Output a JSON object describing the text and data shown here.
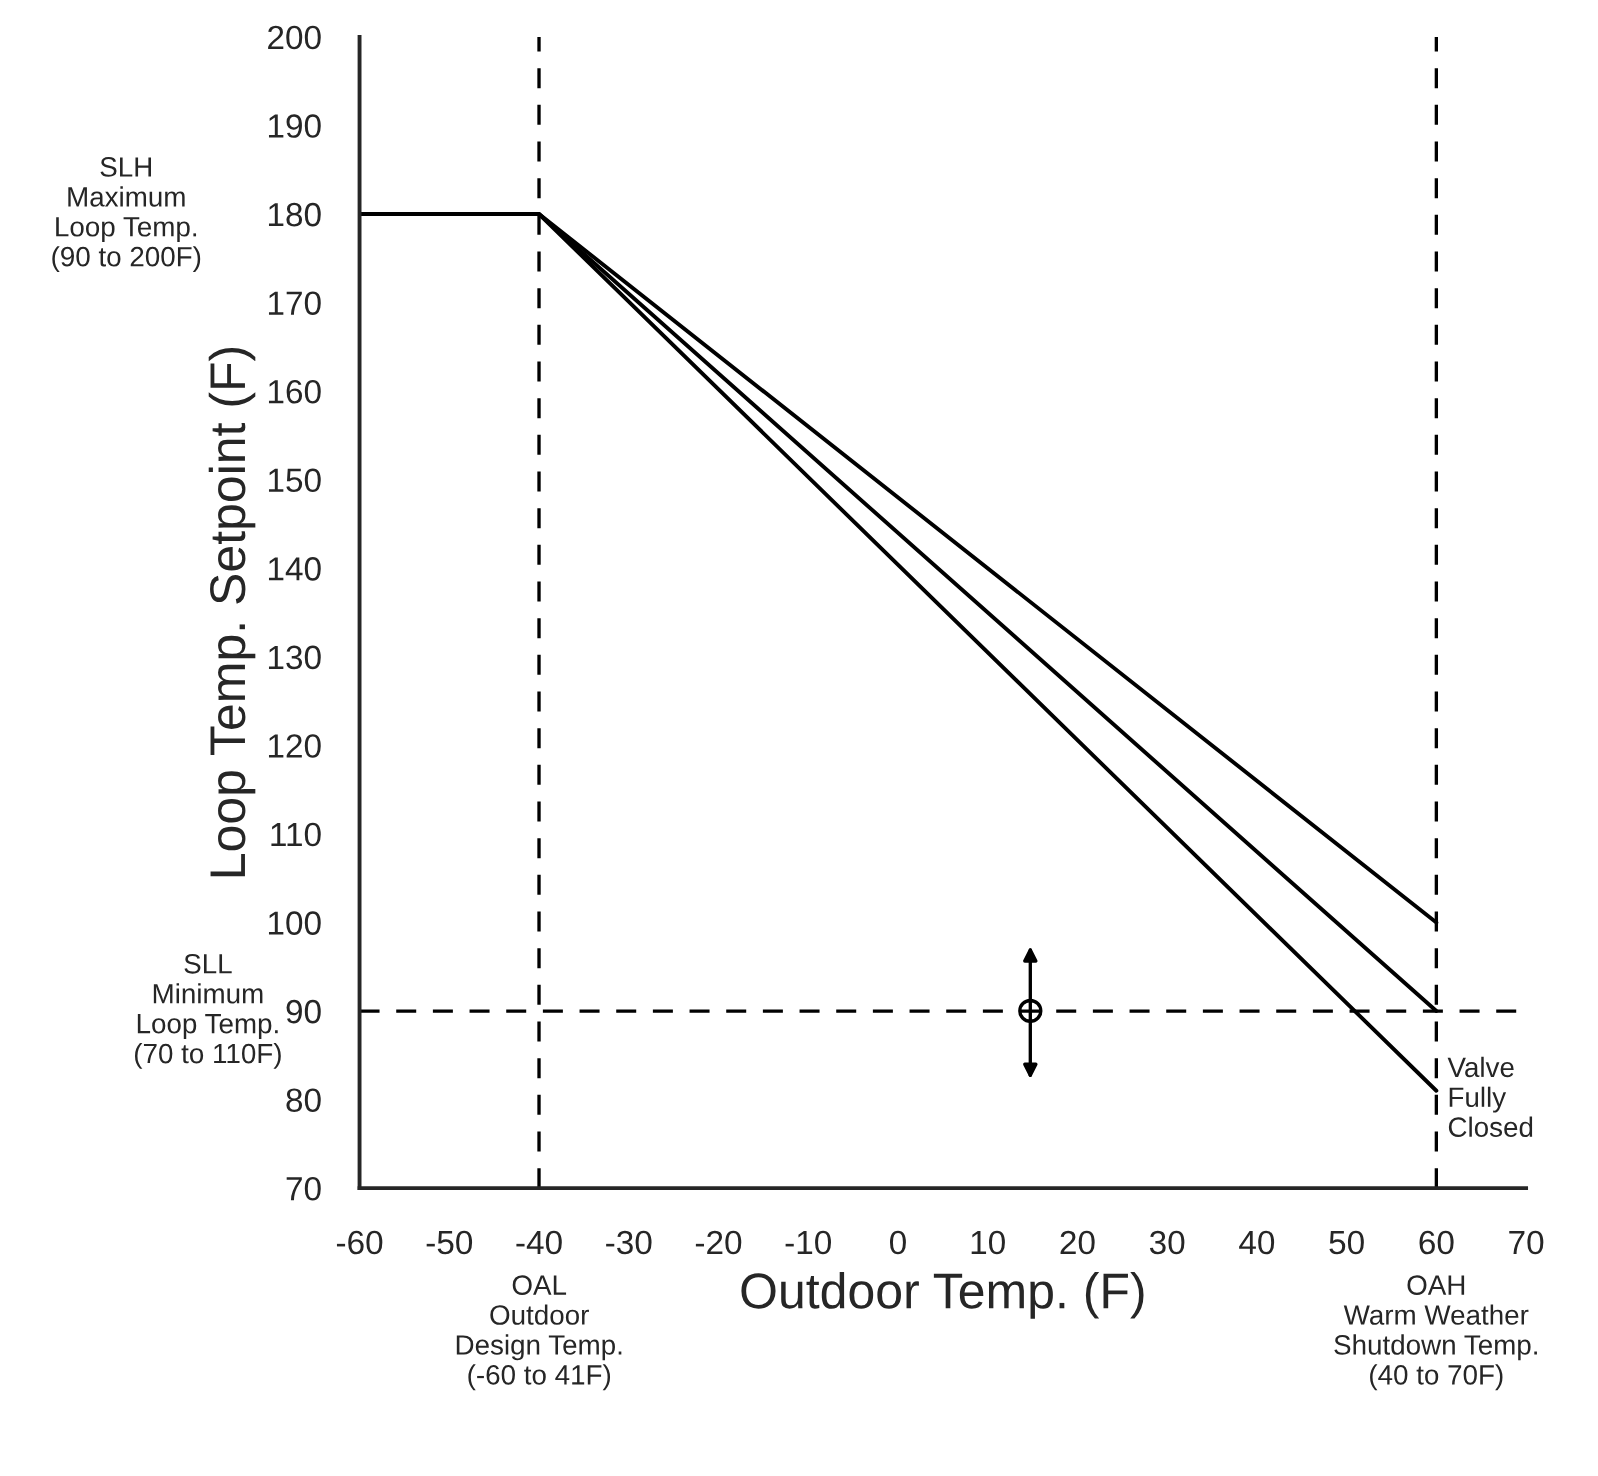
{
  "chart_data": {
    "type": "line",
    "xlabel": "Outdoor Temp. (F)",
    "ylabel": "Loop Temp. Setpoint (F)",
    "xlim": [
      -60,
      70
    ],
    "ylim": [
      70,
      200
    ],
    "xticks": [
      -60,
      -50,
      -40,
      -30,
      -20,
      -10,
      0,
      10,
      20,
      30,
      40,
      50,
      60,
      70
    ],
    "yticks": [
      70,
      80,
      90,
      100,
      110,
      120,
      130,
      140,
      150,
      160,
      170,
      180,
      190,
      200
    ],
    "grid": false,
    "legend": false,
    "marker": "none",
    "line_style": "solid",
    "series": [
      {
        "color": "#000000",
        "x": [
          -60,
          -40,
          60
        ],
        "values": [
          180,
          180,
          100
        ]
      },
      {
        "color": "#000000",
        "x": [
          -60,
          -40,
          60
        ],
        "values": [
          180,
          180,
          90
        ]
      },
      {
        "color": "#000000",
        "x": [
          -60,
          -40,
          60
        ],
        "values": [
          180,
          180,
          81
        ]
      }
    ],
    "ref_lines": [
      {
        "axis": "x",
        "value": -40,
        "color": "#000000",
        "line_style": "dashed"
      },
      {
        "axis": "x",
        "value": 60,
        "color": "#000000",
        "line_style": "dashed"
      },
      {
        "axis": "y",
        "value": 90,
        "label": "SLL\nMinimum\nLoop Temp.\n(70 to 110F)",
        "color": "#000000",
        "line_style": "dashed"
      }
    ],
    "annotations": [
      "SLH\nMaximum\nLoop Temp.\n(90 to 200F)",
      "OAL\nOutdoor\nDesign Temp.\n(-60 to 41F)",
      "OAH\nWarm Weather\nShutdown Temp.\n(40 to 70F)",
      {
        "text": "Valve\nFully\nClosed",
        "x": 60,
        "y": 80
      }
    ]
  }
}
